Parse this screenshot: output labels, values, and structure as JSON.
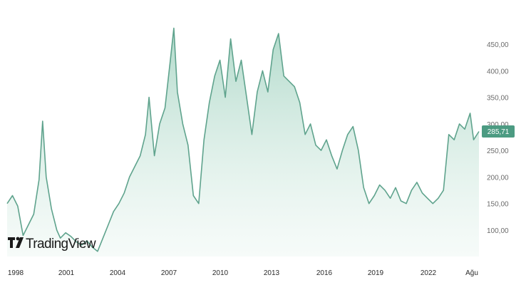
{
  "chart_data": {
    "type": "area",
    "x_tick_labels": [
      "1998",
      "2001",
      "2004",
      "2007",
      "2010",
      "2013",
      "2016",
      "2019",
      "2022",
      "Ağu"
    ],
    "y_tick_labels": [
      "100,00",
      "150,00",
      "200,00",
      "250,00",
      "300,00",
      "350,00",
      "400,00",
      "450,00"
    ],
    "y_ticks": [
      100,
      150,
      200,
      250,
      300,
      350,
      400,
      450
    ],
    "ylim": [
      60,
      490
    ],
    "xlim": [
      1998,
      2024.6
    ],
    "grid": false,
    "last_price_label": "285,71",
    "last_price": 285.71,
    "series": [
      {
        "x": [
          1998.0,
          1998.3,
          1998.6,
          1998.9,
          1999.2,
          1999.5,
          1999.8,
          2000.0,
          2000.2,
          2000.5,
          2000.8,
          2001.0,
          2001.3,
          2001.6,
          2001.9,
          2002.2,
          2002.5,
          2002.8,
          2003.1,
          2003.4,
          2003.7,
          2004.0,
          2004.3,
          2004.6,
          2004.9,
          2005.2,
          2005.5,
          2005.8,
          2006.0,
          2006.3,
          2006.6,
          2006.9,
          2007.2,
          2007.4,
          2007.6,
          2007.9,
          2008.2,
          2008.5,
          2008.8,
          2009.1,
          2009.4,
          2009.7,
          2010.0,
          2010.3,
          2010.6,
          2010.9,
          2011.2,
          2011.5,
          2011.8,
          2012.1,
          2012.4,
          2012.7,
          2013.0,
          2013.3,
          2013.6,
          2013.9,
          2014.2,
          2014.5,
          2014.8,
          2015.1,
          2015.4,
          2015.7,
          2016.0,
          2016.3,
          2016.6,
          2016.9,
          2017.2,
          2017.5,
          2017.8,
          2018.1,
          2018.4,
          2018.7,
          2019.0,
          2019.3,
          2019.6,
          2019.9,
          2020.2,
          2020.5,
          2020.8,
          2021.1,
          2021.4,
          2021.7,
          2022.0,
          2022.3,
          2022.6,
          2022.9,
          2023.2,
          2023.5,
          2023.8,
          2024.1,
          2024.3,
          2024.6
        ],
        "values": [
          150,
          165,
          145,
          90,
          110,
          130,
          195,
          305,
          200,
          140,
          100,
          85,
          95,
          88,
          78,
          72,
          80,
          68,
          60,
          85,
          110,
          135,
          150,
          170,
          200,
          220,
          240,
          280,
          350,
          240,
          300,
          330,
          420,
          480,
          360,
          300,
          260,
          165,
          150,
          270,
          340,
          390,
          420,
          350,
          460,
          380,
          420,
          350,
          280,
          360,
          400,
          360,
          440,
          470,
          390,
          380,
          370,
          340,
          280,
          300,
          260,
          250,
          270,
          240,
          215,
          250,
          280,
          295,
          250,
          180,
          150,
          165,
          185,
          175,
          160,
          180,
          155,
          150,
          175,
          190,
          170,
          160,
          150,
          160,
          175,
          280,
          270,
          300,
          290,
          320,
          270,
          285.71
        ]
      }
    ]
  },
  "brand": {
    "logo_text": "TradingView",
    "logo_mark": "TV",
    "line_color": "#5fa38d",
    "fill_color": "#bfe1d4",
    "price_tag_color": "#4c9b82"
  }
}
